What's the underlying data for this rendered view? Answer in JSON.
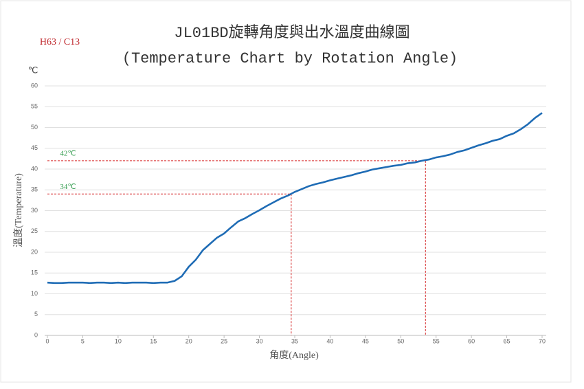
{
  "chart_data": {
    "type": "line",
    "tag": "H63 / C13",
    "title": "JL01BD旋轉角度與出水溫度曲線圖",
    "subtitle": "(Temperature Chart by Rotation Angle)",
    "y_unit": "℃",
    "ylabel": "溫度(Temperature)",
    "xlabel": "角度(Angle)",
    "x": [
      0,
      1,
      2,
      3,
      4,
      5,
      6,
      7,
      8,
      9,
      10,
      11,
      12,
      13,
      14,
      15,
      16,
      17,
      18,
      19,
      20,
      21,
      22,
      23,
      24,
      25,
      26,
      27,
      28,
      29,
      30,
      31,
      32,
      33,
      34,
      35,
      36,
      37,
      38,
      39,
      40,
      41,
      42,
      43,
      44,
      45,
      46,
      47,
      48,
      49,
      50,
      51,
      52,
      53,
      54,
      55,
      56,
      57,
      58,
      59,
      60,
      61,
      62,
      63,
      64,
      65,
      66,
      67,
      68,
      69,
      70
    ],
    "series": [
      {
        "color": "#1f6cb5",
        "values": [
          12.7,
          12.6,
          12.6,
          12.7,
          12.7,
          12.7,
          12.6,
          12.7,
          12.7,
          12.6,
          12.7,
          12.6,
          12.7,
          12.7,
          12.7,
          12.6,
          12.7,
          12.7,
          13.1,
          14.2,
          16.5,
          18.2,
          20.5,
          22,
          23.5,
          24.5,
          26,
          27.4,
          28.2,
          29.2,
          30.1,
          31.1,
          32,
          32.9,
          33.6,
          34.5,
          35.2,
          35.9,
          36.4,
          36.8,
          37.3,
          37.7,
          38.1,
          38.5,
          39,
          39.4,
          39.9,
          40.2,
          40.5,
          40.8,
          41,
          41.4,
          41.6,
          42,
          42.3,
          42.8,
          43.1,
          43.5,
          44.1,
          44.5,
          45.1,
          45.7,
          46.2,
          46.8,
          47.2,
          48,
          48.6,
          49.6,
          50.8,
          52.3,
          53.5
        ]
      }
    ],
    "reference_lines": [
      {
        "x": 53.5,
        "y": 42,
        "label": "42℃"
      },
      {
        "x": 34.5,
        "y": 34,
        "label": "34℃"
      }
    ],
    "xlim": [
      0,
      70
    ],
    "xticks": [
      0,
      5,
      10,
      15,
      20,
      25,
      30,
      35,
      40,
      45,
      50,
      55,
      60,
      65,
      70
    ],
    "ylim": [
      0,
      60
    ],
    "yticks": [
      0,
      5,
      10,
      15,
      20,
      25,
      30,
      35,
      40,
      45,
      50,
      55,
      60
    ],
    "grid": true
  }
}
